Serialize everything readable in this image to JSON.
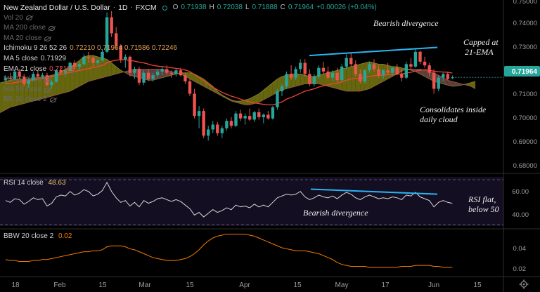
{
  "header": {
    "symbol_title": "New Zealand Dollar / U.S. Dollar",
    "interval": "1D",
    "exchange": "FXCM",
    "ohlc": {
      "o_label": "O",
      "o": "0.71938",
      "h_label": "H",
      "h": "0.72038",
      "l_label": "L",
      "l": "0.71888",
      "c_label": "C",
      "c": "0.71964",
      "chg": "+0.00026 (+0.04%)"
    }
  },
  "indicators": [
    {
      "label": "Vol 20",
      "value": "",
      "hidden": true
    },
    {
      "label": "MA 200 close",
      "value": "",
      "hidden": true
    },
    {
      "label": "MA 20 close",
      "value": "",
      "hidden": true
    },
    {
      "label": "Ichimoku 9 26 52 26",
      "value": "0.72210  0.71964  0.71586  0.72246",
      "hidden": false
    },
    {
      "label": "MA 5 close",
      "value": "0.71929",
      "hidden": false
    },
    {
      "label": "EMA 21 close",
      "value": "0.72138",
      "hidden": false
    },
    {
      "label": "MA 10 close",
      "value": "",
      "hidden": true
    },
    {
      "label": "MA 55 close",
      "value": "",
      "hidden": true
    },
    {
      "label": "BB 20 close 2",
      "value": "",
      "hidden": true
    }
  ],
  "annotations": {
    "bearish_top": "Bearish divergence",
    "capped_1": "Capped at",
    "capped_2": "21-EMA",
    "consolidates_1": "Consolidates inside",
    "consolidates_2": "daily cloud",
    "bearish_rsi": "Bearish divergence",
    "rsi_flat_1": "RSI flat,",
    "rsi_flat_2": "below 50"
  },
  "rsi_panel": {
    "label": "RSI 14 close",
    "value": "48.63"
  },
  "bbw_panel": {
    "label": "BBW 20 close 2",
    "value": "0.02"
  },
  "price_axis": {
    "ticks": [
      "0.74000",
      "0.73000",
      "0.72000",
      "0.71000",
      "0.70000",
      "0.69000",
      "0.68000"
    ],
    "top_partial": "0.75000",
    "current_price": "0.71964",
    "current_color": "#26a69a"
  },
  "rsi_axis": {
    "ticks": [
      "60.00",
      "40.00"
    ]
  },
  "bbw_axis": {
    "ticks": [
      "0.04",
      "0.02"
    ]
  },
  "time_axis": {
    "ticks": [
      "18",
      "Feb",
      "15",
      "Mar",
      "15",
      "Apr",
      "15",
      "May",
      "17",
      "Jun",
      "15"
    ]
  },
  "colors": {
    "up": "#26a69a",
    "down": "#ef5350",
    "trendline": "#29b6f6",
    "rsi_bg": "#140e22",
    "bbw_line": "#f57c00",
    "ema": "#f44336"
  },
  "chart_data": {
    "type": "candlestick",
    "y_range": [
      0.681,
      0.751
    ],
    "candles": [
      [
        0.7185,
        0.7205,
        0.717,
        0.7195
      ],
      [
        0.7195,
        0.7215,
        0.718,
        0.719
      ],
      [
        0.719,
        0.7225,
        0.7185,
        0.722
      ],
      [
        0.722,
        0.723,
        0.719,
        0.72
      ],
      [
        0.72,
        0.721,
        0.716,
        0.717
      ],
      [
        0.717,
        0.7195,
        0.7155,
        0.7185
      ],
      [
        0.7185,
        0.722,
        0.718,
        0.721
      ],
      [
        0.721,
        0.7225,
        0.7195,
        0.72
      ],
      [
        0.72,
        0.7215,
        0.719,
        0.7205
      ],
      [
        0.7205,
        0.7215,
        0.716,
        0.7165
      ],
      [
        0.7165,
        0.7185,
        0.715,
        0.7178
      ],
      [
        0.7178,
        0.723,
        0.7175,
        0.7225
      ],
      [
        0.7225,
        0.724,
        0.7205,
        0.7215
      ],
      [
        0.7215,
        0.723,
        0.72,
        0.7222
      ],
      [
        0.7222,
        0.726,
        0.7215,
        0.7255
      ],
      [
        0.7255,
        0.7265,
        0.723,
        0.724
      ],
      [
        0.724,
        0.726,
        0.7225,
        0.725
      ],
      [
        0.725,
        0.729,
        0.7245,
        0.728
      ],
      [
        0.728,
        0.73,
        0.7255,
        0.7275
      ],
      [
        0.7275,
        0.7285,
        0.724,
        0.7255
      ],
      [
        0.7255,
        0.727,
        0.7245,
        0.7265
      ],
      [
        0.7265,
        0.731,
        0.726,
        0.73
      ],
      [
        0.73,
        0.746,
        0.7295,
        0.744
      ],
      [
        0.744,
        0.7465,
        0.736,
        0.7375
      ],
      [
        0.7375,
        0.74,
        0.731,
        0.7325
      ],
      [
        0.7325,
        0.733,
        0.7255,
        0.727
      ],
      [
        0.727,
        0.729,
        0.7235,
        0.728
      ],
      [
        0.728,
        0.7285,
        0.72,
        0.7215
      ],
      [
        0.7215,
        0.724,
        0.719,
        0.723
      ],
      [
        0.723,
        0.724,
        0.7165,
        0.7175
      ],
      [
        0.7175,
        0.7225,
        0.7165,
        0.7215
      ],
      [
        0.7215,
        0.723,
        0.718,
        0.719
      ],
      [
        0.719,
        0.7215,
        0.718,
        0.7205
      ],
      [
        0.7205,
        0.723,
        0.7195,
        0.722
      ],
      [
        0.722,
        0.724,
        0.7205,
        0.723
      ],
      [
        0.723,
        0.7245,
        0.7205,
        0.7215
      ],
      [
        0.7215,
        0.7225,
        0.7195,
        0.721
      ],
      [
        0.721,
        0.723,
        0.72,
        0.7225
      ],
      [
        0.7225,
        0.7235,
        0.72,
        0.7205
      ],
      [
        0.7205,
        0.7215,
        0.717,
        0.718
      ],
      [
        0.718,
        0.719,
        0.712,
        0.713
      ],
      [
        0.713,
        0.715,
        0.703,
        0.704
      ],
      [
        0.704,
        0.708,
        0.699,
        0.706
      ],
      [
        0.706,
        0.707,
        0.695,
        0.696
      ],
      [
        0.696,
        0.7,
        0.694,
        0.6985
      ],
      [
        0.6985,
        0.702,
        0.697,
        0.7005
      ],
      [
        0.7005,
        0.7015,
        0.696,
        0.697
      ],
      [
        0.697,
        0.7,
        0.695,
        0.699
      ],
      [
        0.699,
        0.703,
        0.698,
        0.702
      ],
      [
        0.702,
        0.7035,
        0.699,
        0.7
      ],
      [
        0.7,
        0.706,
        0.6995,
        0.705
      ],
      [
        0.705,
        0.7065,
        0.702,
        0.703
      ],
      [
        0.703,
        0.705,
        0.7005,
        0.704
      ],
      [
        0.704,
        0.707,
        0.702,
        0.7025
      ],
      [
        0.7025,
        0.706,
        0.7015,
        0.7055
      ],
      [
        0.7055,
        0.707,
        0.7025,
        0.7035
      ],
      [
        0.7035,
        0.705,
        0.701,
        0.7045
      ],
      [
        0.7045,
        0.706,
        0.7025,
        0.703
      ],
      [
        0.703,
        0.708,
        0.7025,
        0.7075
      ],
      [
        0.7075,
        0.715,
        0.7065,
        0.714
      ],
      [
        0.714,
        0.717,
        0.712,
        0.716
      ],
      [
        0.716,
        0.722,
        0.715,
        0.721
      ],
      [
        0.721,
        0.7245,
        0.7185,
        0.7195
      ],
      [
        0.7195,
        0.724,
        0.7185,
        0.723
      ],
      [
        0.723,
        0.727,
        0.7215,
        0.7255
      ],
      [
        0.7255,
        0.727,
        0.72,
        0.721
      ],
      [
        0.721,
        0.723,
        0.716,
        0.717
      ],
      [
        0.717,
        0.721,
        0.716,
        0.72
      ],
      [
        0.72,
        0.7245,
        0.719,
        0.7235
      ],
      [
        0.7235,
        0.726,
        0.721,
        0.722
      ],
      [
        0.722,
        0.724,
        0.719,
        0.7195
      ],
      [
        0.7195,
        0.7225,
        0.718,
        0.7215
      ],
      [
        0.7215,
        0.7235,
        0.7175,
        0.7185
      ],
      [
        0.7185,
        0.725,
        0.718,
        0.724
      ],
      [
        0.724,
        0.729,
        0.723,
        0.7275
      ],
      [
        0.7275,
        0.7295,
        0.724,
        0.725
      ],
      [
        0.725,
        0.7265,
        0.72,
        0.721
      ],
      [
        0.721,
        0.723,
        0.717,
        0.718
      ],
      [
        0.718,
        0.723,
        0.717,
        0.7225
      ],
      [
        0.7225,
        0.726,
        0.7215,
        0.725
      ],
      [
        0.725,
        0.727,
        0.722,
        0.723
      ],
      [
        0.723,
        0.7245,
        0.7195,
        0.7205
      ],
      [
        0.7205,
        0.723,
        0.719,
        0.7225
      ],
      [
        0.7225,
        0.7255,
        0.7205,
        0.7215
      ],
      [
        0.7215,
        0.724,
        0.72,
        0.7235
      ],
      [
        0.7235,
        0.725,
        0.7205,
        0.721
      ],
      [
        0.721,
        0.723,
        0.718,
        0.7195
      ],
      [
        0.7195,
        0.726,
        0.719,
        0.725
      ],
      [
        0.725,
        0.7275,
        0.723,
        0.724
      ],
      [
        0.724,
        0.731,
        0.7235,
        0.73
      ],
      [
        0.73,
        0.7305,
        0.725,
        0.726
      ],
      [
        0.726,
        0.728,
        0.7235,
        0.7245
      ],
      [
        0.7245,
        0.7255,
        0.72,
        0.7215
      ],
      [
        0.7215,
        0.723,
        0.713,
        0.715
      ],
      [
        0.715,
        0.7205,
        0.714,
        0.7195
      ],
      [
        0.7195,
        0.7215,
        0.718,
        0.721
      ],
      [
        0.721,
        0.722,
        0.7185,
        0.719
      ],
      [
        0.7194,
        0.7204,
        0.7189,
        0.7196
      ]
    ],
    "ema21": [
      0.717,
      0.7172,
      0.7175,
      0.7178,
      0.718,
      0.7183,
      0.7186,
      0.719,
      0.7193,
      0.7197,
      0.72,
      0.7204,
      0.7208,
      0.7212,
      0.7216,
      0.722,
      0.7224,
      0.7228,
      0.7232,
      0.7236,
      0.724,
      0.7245,
      0.7255,
      0.7262,
      0.7266,
      0.7268,
      0.7268,
      0.7265,
      0.7262,
      0.7258,
      0.7255,
      0.725,
      0.7245,
      0.7242,
      0.724,
      0.7238,
      0.7235,
      0.7233,
      0.723,
      0.7226,
      0.722,
      0.7208,
      0.7196,
      0.7182,
      0.7168,
      0.7157,
      0.7146,
      0.7136,
      0.7128,
      0.712,
      0.7115,
      0.7108,
      0.7102,
      0.7097,
      0.7093,
      0.709,
      0.7087,
      0.7085,
      0.7085,
      0.709,
      0.7097,
      0.7108,
      0.7115,
      0.7123,
      0.7132,
      0.714,
      0.7145,
      0.715,
      0.7157,
      0.7162,
      0.7166,
      0.717,
      0.7172,
      0.7178,
      0.7185,
      0.719,
      0.7192,
      0.7193,
      0.7196,
      0.72,
      0.7203,
      0.7204,
      0.7205,
      0.7207,
      0.7209,
      0.721,
      0.721,
      0.7214,
      0.7217,
      0.7222,
      0.7225,
      0.7227,
      0.7226,
      0.7221,
      0.7219,
      0.7218,
      0.7217,
      0.7214
    ],
    "cloud": {
      "x_start_index": 10,
      "span_a": [
        0.7065,
        0.708,
        0.7095,
        0.711,
        0.7125,
        0.714,
        0.715,
        0.716,
        0.717,
        0.7175,
        0.718,
        0.7185,
        0.7188,
        0.719,
        0.719,
        0.719,
        0.7192,
        0.7195,
        0.7198,
        0.72,
        0.7205,
        0.721,
        0.722,
        0.723,
        0.724,
        0.725,
        0.7265,
        0.728,
        0.7285,
        0.7285,
        0.728,
        0.7275,
        0.727,
        0.7255,
        0.724,
        0.7225,
        0.7215,
        0.7205,
        0.72,
        0.7195,
        0.719,
        0.7185,
        0.7185,
        0.719,
        0.7195,
        0.72,
        0.7205,
        0.721,
        0.7215,
        0.7215,
        0.7215,
        0.721,
        0.72,
        0.719,
        0.7175,
        0.716,
        0.714,
        0.7125,
        0.7115,
        0.7105,
        0.71,
        0.71,
        0.7105,
        0.711,
        0.712,
        0.713,
        0.7145,
        0.716,
        0.7175,
        0.719,
        0.72,
        0.7205,
        0.721,
        0.721,
        0.721,
        0.7205,
        0.72,
        0.72,
        0.7205,
        0.721,
        0.7215,
        0.722,
        0.7225,
        0.723,
        0.7235,
        0.724,
        0.7245,
        0.725,
        0.7255,
        0.726,
        0.7255,
        0.725,
        0.725,
        0.7245,
        0.724,
        0.724,
        0.7235,
        0.723,
        0.7225,
        0.722,
        0.721,
        0.72,
        0.719,
        0.718,
        0.7175,
        0.717,
        0.7165,
        0.716,
        0.7162,
        0.7165,
        0.717,
        0.7175,
        0.718
      ],
      "span_b": [
        0.6945,
        0.6955,
        0.697,
        0.698,
        0.6995,
        0.7005,
        0.702,
        0.7035,
        0.7045,
        0.7055,
        0.7065,
        0.7075,
        0.708,
        0.7085,
        0.709,
        0.7095,
        0.71,
        0.7105,
        0.711,
        0.7115,
        0.712,
        0.7125,
        0.713,
        0.7135,
        0.714,
        0.715,
        0.716,
        0.717,
        0.718,
        0.7185,
        0.719,
        0.7195,
        0.72,
        0.7205,
        0.721,
        0.7215,
        0.722,
        0.7225,
        0.723,
        0.723,
        0.723,
        0.723,
        0.723,
        0.723,
        0.723,
        0.7225,
        0.722,
        0.7215,
        0.721,
        0.72,
        0.719,
        0.718,
        0.717,
        0.716,
        0.715,
        0.714,
        0.713,
        0.712,
        0.711,
        0.71,
        0.7095,
        0.709,
        0.7085,
        0.7085,
        0.709,
        0.7095,
        0.7105,
        0.7115,
        0.7125,
        0.7135,
        0.7145,
        0.715,
        0.7155,
        0.716,
        0.7165,
        0.717,
        0.717,
        0.717,
        0.717,
        0.7165,
        0.716,
        0.7155,
        0.715,
        0.7145,
        0.714,
        0.714,
        0.714,
        0.714,
        0.7145,
        0.715,
        0.716,
        0.717,
        0.718,
        0.719,
        0.72,
        0.721,
        0.722,
        0.723,
        0.723,
        0.723,
        0.723,
        0.7225,
        0.722,
        0.7215,
        0.7205,
        0.7195,
        0.7185,
        0.718,
        0.7175,
        0.717,
        0.7165,
        0.716,
        0.715
      ]
    },
    "rsi": [
      52,
      50,
      54,
      53,
      48,
      51,
      55,
      53,
      54,
      46,
      49,
      56,
      58,
      57,
      62,
      58,
      60,
      64,
      62,
      57,
      59,
      63,
      72,
      62,
      55,
      50,
      52,
      46,
      50,
      45,
      52,
      49,
      51,
      54,
      55,
      53,
      51,
      53,
      51,
      47,
      43,
      36,
      39,
      34,
      38,
      42,
      39,
      41,
      44,
      42,
      47,
      45,
      46,
      44,
      48,
      45,
      47,
      45,
      50,
      55,
      57,
      59,
      58,
      59,
      62,
      56,
      53,
      55,
      58,
      56,
      55,
      57,
      54,
      58,
      61,
      59,
      55,
      53,
      56,
      58,
      56,
      54,
      55,
      54,
      56,
      55,
      53,
      58,
      57,
      61,
      56,
      54,
      52,
      45,
      50,
      52,
      50,
      49
    ],
    "rsi_range": [
      24,
      78
    ],
    "bbw": [
      0.028,
      0.027,
      0.027,
      0.026,
      0.026,
      0.026,
      0.027,
      0.027,
      0.028,
      0.028,
      0.029,
      0.03,
      0.031,
      0.032,
      0.033,
      0.034,
      0.035,
      0.036,
      0.036,
      0.037,
      0.037,
      0.038,
      0.041,
      0.042,
      0.042,
      0.042,
      0.041,
      0.039,
      0.038,
      0.036,
      0.034,
      0.032,
      0.03,
      0.029,
      0.028,
      0.027,
      0.027,
      0.027,
      0.028,
      0.029,
      0.031,
      0.034,
      0.038,
      0.043,
      0.047,
      0.05,
      0.052,
      0.053,
      0.054,
      0.054,
      0.054,
      0.054,
      0.054,
      0.053,
      0.052,
      0.05,
      0.048,
      0.046,
      0.044,
      0.042,
      0.04,
      0.039,
      0.038,
      0.037,
      0.037,
      0.037,
      0.036,
      0.035,
      0.034,
      0.032,
      0.03,
      0.028,
      0.025,
      0.023,
      0.022,
      0.021,
      0.021,
      0.021,
      0.021,
      0.02,
      0.02,
      0.02,
      0.02,
      0.02,
      0.02,
      0.02,
      0.021,
      0.021,
      0.021,
      0.022,
      0.022,
      0.022,
      0.022,
      0.021,
      0.021,
      0.02,
      0.02,
      0.02
    ],
    "bbw_range": [
      0.012,
      0.058
    ],
    "trendline_price": [
      [
        0.7285,
        0.7318
      ]
    ],
    "trendline_rsi": [
      [
        61,
        57
      ]
    ]
  }
}
